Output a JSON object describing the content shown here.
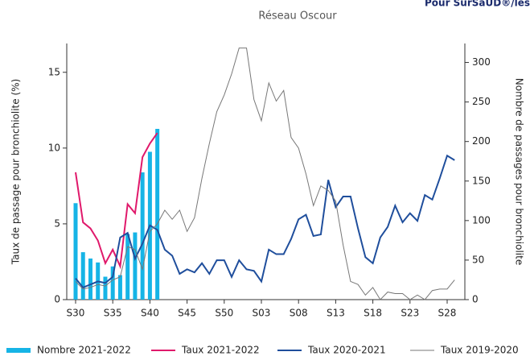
{
  "header_fragment": "Pour SurSaUD®/les",
  "chart_data": {
    "type": "combo",
    "title": "Réseau Oscour",
    "y_label": "Taux de passage pour bronchiolite (%)",
    "y2_label": "Nombre de passages pour bronchiolite",
    "categories": [
      "S30",
      null,
      null,
      null,
      null,
      "S35",
      null,
      null,
      null,
      null,
      "S40",
      null,
      null,
      null,
      null,
      "S45",
      null,
      null,
      null,
      null,
      "S50",
      null,
      null,
      null,
      null,
      "S03",
      null,
      null,
      null,
      null,
      "S08",
      null,
      null,
      null,
      null,
      "S13",
      null,
      null,
      null,
      null,
      "S18",
      null,
      null,
      null,
      null,
      "S23",
      null,
      null,
      null,
      null,
      "S28",
      null
    ],
    "ylim": [
      0,
      16.9
    ],
    "yticks": [
      0,
      5,
      10,
      15
    ],
    "y2lim": [
      0,
      324
    ],
    "y2ticks": [
      0,
      50,
      100,
      150,
      200,
      250,
      300
    ],
    "series": [
      {
        "name": "Nombre 2021-2022",
        "type": "bar",
        "axis": "y2",
        "color": "#16b4e6",
        "values": [
          122,
          60,
          52,
          47,
          29,
          42,
          31,
          83,
          85,
          161,
          187,
          216,
          null,
          null,
          null,
          null,
          null,
          null,
          null,
          null,
          null,
          null,
          null,
          null,
          null,
          null,
          null,
          null,
          null,
          null,
          null,
          null,
          null,
          null,
          null,
          null,
          null,
          null,
          null,
          null,
          null,
          null,
          null,
          null,
          null,
          null,
          null,
          null,
          null,
          null,
          null,
          null
        ]
      },
      {
        "name": "Taux 2021-2022",
        "type": "line",
        "color": "#e0196b",
        "values": [
          8.4,
          5.1,
          4.7,
          3.9,
          2.4,
          3.3,
          2.2,
          6.3,
          5.7,
          9.4,
          10.3,
          11.0,
          null,
          null,
          null,
          null,
          null,
          null,
          null,
          null,
          null,
          null,
          null,
          null,
          null,
          null,
          null,
          null,
          null,
          null,
          null,
          null,
          null,
          null,
          null,
          null,
          null,
          null,
          null,
          null,
          null,
          null,
          null,
          null,
          null,
          null,
          null,
          null,
          null,
          null,
          null,
          null
        ]
      },
      {
        "name": "Taux 2020-2021",
        "type": "line",
        "color": "#1f4e9c",
        "values": [
          1.4,
          0.8,
          1.0,
          1.2,
          1.1,
          1.5,
          4.1,
          4.4,
          2.7,
          3.7,
          4.9,
          4.6,
          3.3,
          2.9,
          1.7,
          2.0,
          1.8,
          2.4,
          1.7,
          2.6,
          2.6,
          1.5,
          2.6,
          2.0,
          1.9,
          1.2,
          3.3,
          3.0,
          3.0,
          4.0,
          5.3,
          5.6,
          4.2,
          4.3,
          7.9,
          6.1,
          6.8,
          6.8,
          4.7,
          2.8,
          2.4,
          4.1,
          4.8,
          6.2,
          5.1,
          5.7,
          5.2,
          6.9,
          6.6,
          8.0,
          9.5,
          9.2
        ]
      },
      {
        "name": "Taux 2019-2020",
        "type": "line",
        "color": "#777777",
        "values": [
          1.2,
          0.7,
          0.8,
          1.0,
          0.9,
          1.3,
          1.5,
          3.5,
          3.3,
          2.0,
          4.5,
          5.0,
          5.9,
          5.3,
          5.9,
          4.5,
          5.4,
          8.0,
          10.3,
          12.4,
          13.5,
          14.9,
          16.6,
          16.6,
          13.2,
          11.8,
          14.3,
          13.1,
          13.8,
          10.7,
          10.0,
          8.3,
          6.2,
          7.5,
          7.2,
          6.5,
          3.6,
          1.2,
          1.0,
          0.3,
          0.8,
          0.0,
          0.5,
          0.4,
          0.4,
          0.0,
          0.3,
          0.0,
          0.6,
          0.7,
          0.7,
          1.3
        ]
      }
    ]
  }
}
